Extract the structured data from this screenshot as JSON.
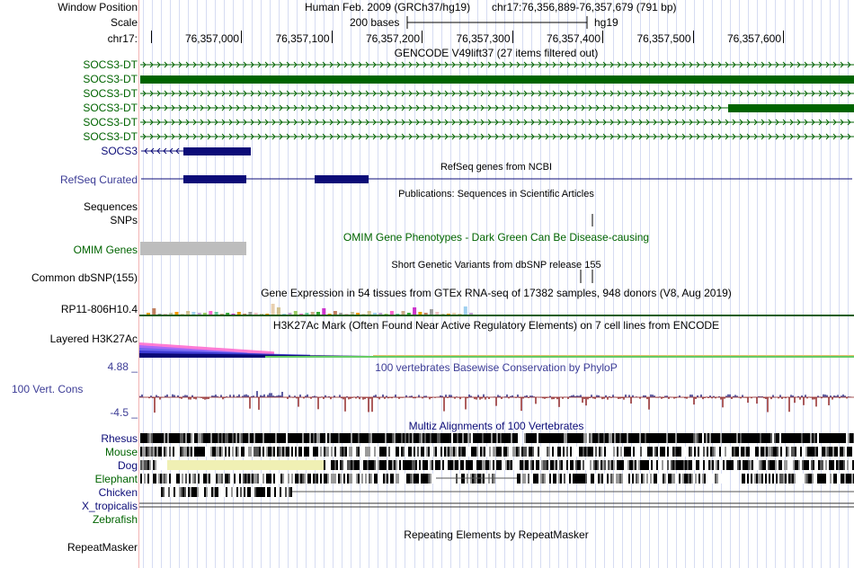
{
  "header": {
    "window_position_label": "Window Position",
    "assembly": "Human Feb. 2009 (GRCh37/hg19)",
    "position": "chr17:76,356,889-76,357,679 (791 bp)",
    "scale_label": "Scale",
    "scale_bar_text": "200 bases",
    "scale_genome": "hg19",
    "chrom_label": "chr17:",
    "ruler_ticks": [
      "76,357,000",
      "76,357,100",
      "76,357,200",
      "76,357,300",
      "76,357,400",
      "76,357,500",
      "76,357,600"
    ]
  },
  "colors": {
    "gencode": "#006400",
    "refseq": "#0c0c78",
    "blue_label": "#3c3c96",
    "omim": "#bdbdbd",
    "dog_yellow": "#f0f0b4",
    "phylop_pos": "#1c1c7c",
    "phylop_neg": "#8b1a1a"
  },
  "tracks": {
    "gencode": {
      "title": "GENCODE V49lift37 (27 items filtered out)",
      "items": [
        {
          "label": "SOCS3-DT",
          "kind": "intron"
        },
        {
          "label": "SOCS3-DT",
          "kind": "exon_full"
        },
        {
          "label": "SOCS3-DT",
          "kind": "intron"
        },
        {
          "label": "SOCS3-DT",
          "kind": "intron_exon_right"
        },
        {
          "label": "SOCS3-DT",
          "kind": "intron"
        },
        {
          "label": "SOCS3-DT",
          "kind": "intron"
        }
      ],
      "socs3_label": "SOCS3"
    },
    "refseq": {
      "label": "RefSeq Curated",
      "title": "RefSeq genes from NCBI"
    },
    "publications": {
      "label": "Sequences",
      "title": "Publications: Sequences in Scientific Articles"
    },
    "snps": {
      "label": "SNPs"
    },
    "omim": {
      "label": "OMIM Genes",
      "title": "OMIM Gene Phenotypes - Dark Green Can Be Disease-causing"
    },
    "dbsnp": {
      "label": "Common dbSNP(155)",
      "title": "Short Genetic Variants from dbSNP release 155"
    },
    "gtex": {
      "label": "RP11-806H10.4",
      "title": "Gene Expression in 54 tissues from GTEx RNA-seq of 17382 samples, 948 donors (V8, Aug 2019)"
    },
    "h3k27ac": {
      "label": "Layered H3K27Ac",
      "title": "H3K27Ac Mark (Often Found Near Active Regulatory Elements) on 7 cell lines from ENCODE"
    },
    "phylop": {
      "label": "100 Vert. Cons",
      "max": "4.88 _",
      "min": "-4.5 _",
      "title": "100 vertebrates Basewise Conservation by PhyloP"
    },
    "multiz": {
      "title": "Multiz Alignments of 100 Vertebrates",
      "species": [
        {
          "name": "Rhesus",
          "color": "#0c0c78"
        },
        {
          "name": "Mouse",
          "color": "#006400"
        },
        {
          "name": "Dog",
          "color": "#0c0c78"
        },
        {
          "name": "Elephant",
          "color": "#006400"
        },
        {
          "name": "Chicken",
          "color": "#0c0c78"
        },
        {
          "name": "X_tropicalis",
          "color": "#0c0c78"
        },
        {
          "name": "Zebrafish",
          "color": "#006400"
        }
      ]
    },
    "repeatmasker": {
      "label": "RepeatMasker",
      "title": "Repeating Elements by RepeatMasker"
    }
  }
}
